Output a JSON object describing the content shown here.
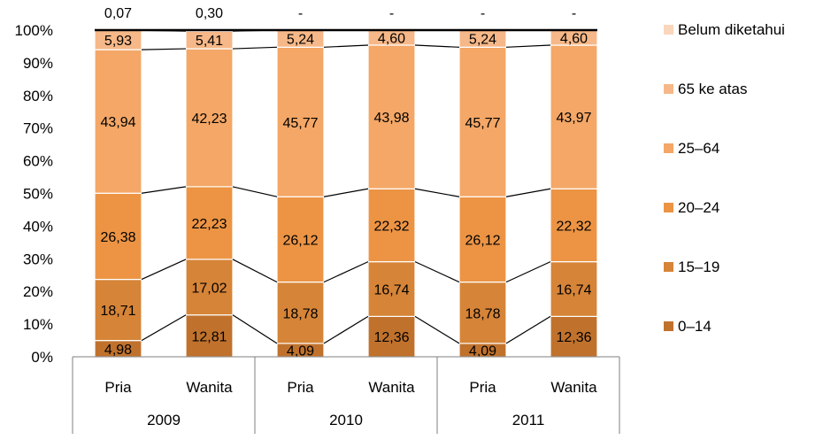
{
  "chart_data": {
    "type": "bar",
    "stacked": true,
    "percent_stacked": true,
    "series_lines": true,
    "grid": false,
    "legend_position": "right",
    "ylim": [
      0,
      100
    ],
    "y_ticks": [
      "0%",
      "10%",
      "20%",
      "30%",
      "40%",
      "50%",
      "60%",
      "70%",
      "80%",
      "90%",
      "100%"
    ],
    "categories": [
      "Pria",
      "Wanita",
      "Pria",
      "Wanita",
      "Pria",
      "Wanita"
    ],
    "groups": [
      {
        "label": "2009",
        "span": 2
      },
      {
        "label": "2010",
        "span": 2
      },
      {
        "label": "2011",
        "span": 2
      }
    ],
    "series": [
      {
        "name": "0–14",
        "color": "#c0722d",
        "values": [
          4.98,
          12.81,
          4.09,
          12.36,
          4.09,
          12.36
        ],
        "labels": [
          "4,98",
          "12,81",
          "4,09",
          "12,36",
          "4,09",
          "12,36"
        ]
      },
      {
        "name": "15–19",
        "color": "#d68438",
        "values": [
          18.71,
          17.02,
          18.78,
          16.74,
          18.78,
          16.74
        ],
        "labels": [
          "18,71",
          "17,02",
          "18,78",
          "16,74",
          "18,78",
          "16,74"
        ]
      },
      {
        "name": "20–24",
        "color": "#ec9444",
        "values": [
          26.38,
          22.23,
          26.12,
          22.32,
          26.12,
          22.32
        ],
        "labels": [
          "26,38",
          "22,23",
          "26,12",
          "22,32",
          "26,12",
          "22,32"
        ]
      },
      {
        "name": "25–64",
        "color": "#f4a766",
        "values": [
          43.94,
          42.23,
          45.77,
          43.98,
          45.77,
          43.97
        ],
        "labels": [
          "43,94",
          "42,23",
          "45,77",
          "43,98",
          "45,77",
          "43,97"
        ]
      },
      {
        "name": "65 ke atas",
        "color": "#f6b888",
        "values": [
          5.93,
          5.41,
          5.24,
          4.6,
          5.24,
          4.6
        ],
        "labels": [
          "5,93",
          "5,41",
          "5,24",
          "4,60",
          "5,24",
          "4,60"
        ]
      },
      {
        "name": "Belum diketahui",
        "color": "#f9d6bc",
        "values": [
          0.07,
          0.3,
          0,
          0,
          0,
          0
        ],
        "labels": [
          "0,07",
          "0,30",
          "-",
          "-",
          "-",
          "-"
        ]
      }
    ]
  }
}
